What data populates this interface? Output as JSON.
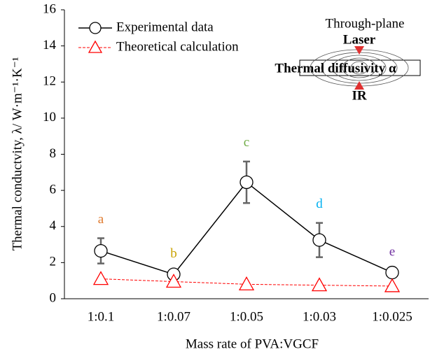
{
  "chart_data": {
    "type": "line",
    "y_label": "Thermal conductvity, λ/ W·m⁻¹·K⁻¹",
    "x_label": "Mass rate of PVA:VGCF",
    "categories": [
      "1:0.1",
      "1:0.07",
      "1:0.05",
      "1:0.03",
      "1:0.025"
    ],
    "series": [
      {
        "name": "Experimental data",
        "color": "#000000",
        "marker": "circle",
        "dashed": false,
        "values": [
          2.65,
          1.35,
          6.45,
          3.25,
          1.45
        ],
        "errors": [
          0.7,
          0.1,
          1.15,
          0.95,
          0.1
        ]
      },
      {
        "name": "Theoretical calculation",
        "color": "#ff0000",
        "marker": "triangle",
        "dashed": true,
        "values": [
          1.1,
          0.95,
          0.8,
          0.75,
          0.7
        ]
      }
    ],
    "annotations": [
      {
        "text": "a",
        "color": "#e07a2e"
      },
      {
        "text": "b",
        "color": "#c9a200"
      },
      {
        "text": "c",
        "color": "#70ad47"
      },
      {
        "text": "d",
        "color": "#00b0f0"
      },
      {
        "text": "e",
        "color": "#7030a0"
      }
    ],
    "ylim": [
      0,
      16
    ],
    "yticks": [
      0,
      2,
      4,
      6,
      8,
      10,
      12,
      14,
      16
    ],
    "grid": false,
    "legend": "top-left",
    "inset": {
      "title": "Through-plane",
      "top": "Laser",
      "middle": "Thermal diffusivity α",
      "bottom": "IR"
    }
  }
}
